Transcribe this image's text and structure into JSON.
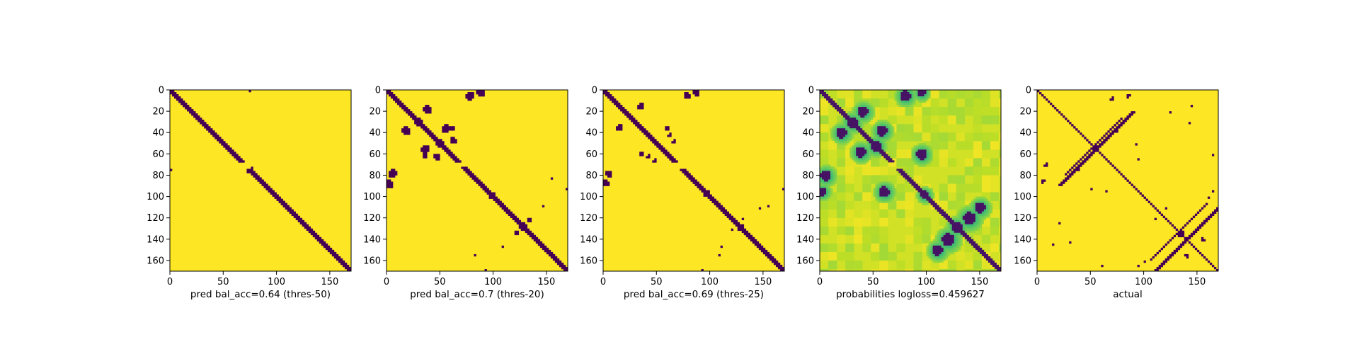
{
  "colors": {
    "low": "#440154",
    "high": "#fde725",
    "frame": "#000000"
  },
  "chart_data": [
    {
      "type": "heatmap",
      "kind": "binary",
      "xlabel": "pred bal_acc=0.64 (thres-50)",
      "x_ticks": [
        "0",
        "50",
        "100",
        "150"
      ],
      "y_ticks": [
        "0",
        "20",
        "40",
        "60",
        "80",
        "100",
        "120",
        "140",
        "160"
      ],
      "xlim": [
        0,
        170
      ],
      "ylim": [
        170,
        0
      ],
      "colormap": "viridis",
      "diagonal_band_halfwidth": 2,
      "diagonal_gaps": [
        [
          67,
          74
        ]
      ],
      "blobs": [
        [
          75,
          1,
          1.2
        ],
        [
          1,
          75,
          1.2
        ],
        [
          77,
          73,
          1.2
        ],
        [
          73,
          77,
          1.2
        ],
        [
          14,
          34,
          0.6
        ],
        [
          40,
          63,
          0.6
        ]
      ]
    },
    {
      "type": "heatmap",
      "kind": "binary",
      "xlabel": "pred bal_acc=0.7 (thres-20)",
      "x_ticks": [
        "0",
        "50",
        "100",
        "150"
      ],
      "y_ticks": [
        "0",
        "20",
        "40",
        "60",
        "80",
        "100",
        "120",
        "140",
        "160"
      ],
      "xlim": [
        0,
        170
      ],
      "ylim": [
        170,
        0
      ],
      "colormap": "viridis",
      "diagonal_band_halfwidth": 2.5,
      "diagonal_gaps": [
        [
          68,
          72
        ]
      ],
      "blobs": [
        [
          30,
          30,
          4
        ],
        [
          50,
          50,
          4
        ],
        [
          98,
          98,
          3.5
        ],
        [
          128,
          128,
          4
        ],
        [
          78,
          5,
          4
        ],
        [
          5,
          78,
          4
        ],
        [
          88,
          2,
          4
        ],
        [
          2,
          88,
          4
        ],
        [
          18,
          38,
          4
        ],
        [
          38,
          18,
          4
        ],
        [
          36,
          55,
          4
        ],
        [
          55,
          36,
          4
        ],
        [
          62,
          47,
          3
        ],
        [
          47,
          62,
          3
        ],
        [
          36,
          62,
          2.5
        ],
        [
          62,
          36,
          2.5
        ],
        [
          108,
          146,
          1.5
        ],
        [
          146,
          108,
          1.5
        ],
        [
          122,
          133,
          2.5
        ],
        [
          133,
          122,
          2.5
        ],
        [
          93,
          168,
          1.5
        ],
        [
          168,
          93,
          1.5
        ],
        [
          155,
          83,
          1.2
        ],
        [
          83,
          155,
          1.2
        ]
      ]
    },
    {
      "type": "heatmap",
      "kind": "binary",
      "xlabel": "pred bal_acc=0.69 (thres-25)",
      "x_ticks": [
        "0",
        "50",
        "100",
        "150"
      ],
      "y_ticks": [
        "0",
        "20",
        "40",
        "60",
        "80",
        "100",
        "120",
        "140",
        "160"
      ],
      "xlim": [
        0,
        170
      ],
      "ylim": [
        170,
        0
      ],
      "colormap": "viridis",
      "diagonal_band_halfwidth": 2.3,
      "diagonal_gaps": [
        [
          68,
          73
        ]
      ],
      "blobs": [
        [
          97,
          97,
          3
        ],
        [
          128,
          128,
          3
        ],
        [
          78,
          5,
          3.5
        ],
        [
          5,
          78,
          3.5
        ],
        [
          87,
          2,
          3
        ],
        [
          2,
          87,
          3
        ],
        [
          35,
          15,
          3
        ],
        [
          15,
          35,
          3
        ],
        [
          60,
          36,
          2.5
        ],
        [
          36,
          60,
          2.5
        ],
        [
          66,
          48,
          2
        ],
        [
          48,
          66,
          2
        ],
        [
          42,
          62,
          2
        ],
        [
          62,
          42,
          2
        ],
        [
          110,
          146,
          1.2
        ],
        [
          146,
          110,
          1.2
        ],
        [
          120,
          130,
          1.5
        ],
        [
          130,
          120,
          1.5
        ],
        [
          93,
          168,
          1.2
        ],
        [
          168,
          93,
          1.2
        ],
        [
          155,
          108,
          1
        ],
        [
          108,
          155,
          1
        ]
      ]
    },
    {
      "type": "heatmap",
      "kind": "probability",
      "xlabel": "probabilities logloss=0.459627",
      "x_ticks": [
        "0",
        "50",
        "100",
        "150"
      ],
      "y_ticks": [
        "0",
        "20",
        "40",
        "60",
        "80",
        "100",
        "120",
        "140",
        "160"
      ],
      "xlim": [
        0,
        170
      ],
      "ylim": [
        170,
        0
      ],
      "colormap": "viridis",
      "diagonal_band_halfwidth": 2.5,
      "diagonal_gaps": [
        [
          68,
          73
        ]
      ],
      "blobs": [
        [
          30,
          30,
          5
        ],
        [
          52,
          52,
          5
        ],
        [
          98,
          98,
          4
        ],
        [
          128,
          128,
          5
        ],
        [
          20,
          40,
          5
        ],
        [
          40,
          20,
          5
        ],
        [
          38,
          58,
          5
        ],
        [
          58,
          38,
          5
        ],
        [
          80,
          5,
          5
        ],
        [
          5,
          80,
          5
        ],
        [
          95,
          2,
          4
        ],
        [
          2,
          95,
          4
        ],
        [
          120,
          140,
          6
        ],
        [
          140,
          120,
          6
        ],
        [
          110,
          150,
          5
        ],
        [
          150,
          110,
          5
        ],
        [
          60,
          95,
          5
        ],
        [
          95,
          60,
          5
        ]
      ]
    },
    {
      "type": "heatmap",
      "kind": "binary",
      "xlabel": "actual",
      "x_ticks": [
        "0",
        "50",
        "100",
        "150"
      ],
      "y_ticks": [
        "0",
        "20",
        "40",
        "60",
        "80",
        "100",
        "120",
        "140",
        "160"
      ],
      "xlim": [
        0,
        170
      ],
      "ylim": [
        170,
        0
      ],
      "colormap": "viridis",
      "diagonal_band_halfwidth": 1.8,
      "diagonal_gaps": [],
      "antidiagonals": [
        [
          45,
          65,
          1.6
        ],
        [
          50,
          55,
          1.4
        ],
        [
          130,
          135,
          1.6
        ],
        [
          135,
          145,
          1.4
        ]
      ],
      "blobs": [
        [
          55,
          55,
          3
        ],
        [
          135,
          135,
          3
        ],
        [
          8,
          70,
          2
        ],
        [
          70,
          8,
          2
        ],
        [
          85,
          5,
          2
        ],
        [
          5,
          85,
          2
        ],
        [
          50,
          92,
          1.5
        ],
        [
          92,
          50,
          1.5
        ],
        [
          95,
          65,
          1.5
        ],
        [
          65,
          95,
          1.5
        ],
        [
          125,
          20,
          1.5
        ],
        [
          20,
          125,
          1.5
        ],
        [
          145,
          15,
          1.5
        ],
        [
          15,
          145,
          1.5
        ],
        [
          100,
          160,
          1.5
        ],
        [
          160,
          100,
          1.5
        ],
        [
          155,
          140,
          2
        ],
        [
          140,
          155,
          2
        ],
        [
          60,
          165,
          1.5
        ],
        [
          165,
          60,
          1.5
        ],
        [
          30,
          142,
          1.2
        ],
        [
          142,
          30,
          1.2
        ],
        [
          110,
          120,
          1.2
        ],
        [
          120,
          110,
          1.2
        ],
        [
          165,
          95,
          1.5
        ],
        [
          95,
          165,
          1.5
        ],
        [
          38,
          75,
          1.2
        ],
        [
          75,
          38,
          1.2
        ]
      ]
    }
  ]
}
